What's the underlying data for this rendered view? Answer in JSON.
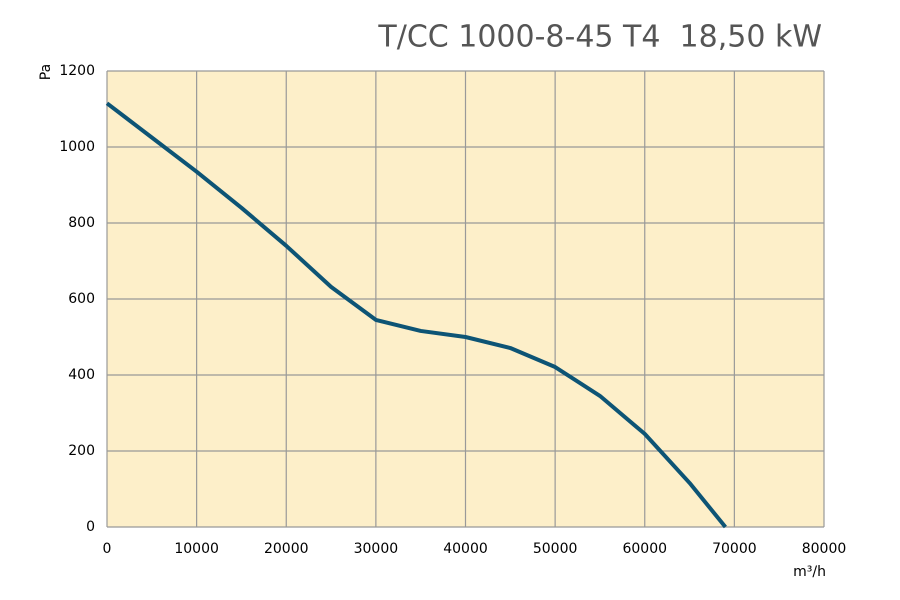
{
  "chart_data": {
    "type": "line",
    "title": "T/CC 1000-8-45 T4  18,50 kW",
    "y_label": "Pa",
    "x_label": "m³/h",
    "x": [
      0,
      5000,
      10000,
      15000,
      20000,
      25000,
      30000,
      35000,
      40000,
      45000,
      50000,
      55000,
      60000,
      65000,
      69000
    ],
    "series": [
      {
        "name": "T/CC 1000-8-45 T4",
        "color": "#0d5475",
        "values": [
          1115,
          1025,
          935,
          840,
          740,
          632,
          545,
          516,
          500,
          471,
          421,
          345,
          245,
          116,
          0
        ]
      }
    ],
    "xlim": [
      0,
      80000
    ],
    "xticks": [
      0,
      10000,
      20000,
      30000,
      40000,
      50000,
      60000,
      70000,
      80000
    ],
    "ylim": [
      0,
      1200
    ],
    "yticks": [
      0,
      200,
      400,
      600,
      800,
      1000,
      1200
    ],
    "grid": true,
    "background": "#fdefc9"
  }
}
